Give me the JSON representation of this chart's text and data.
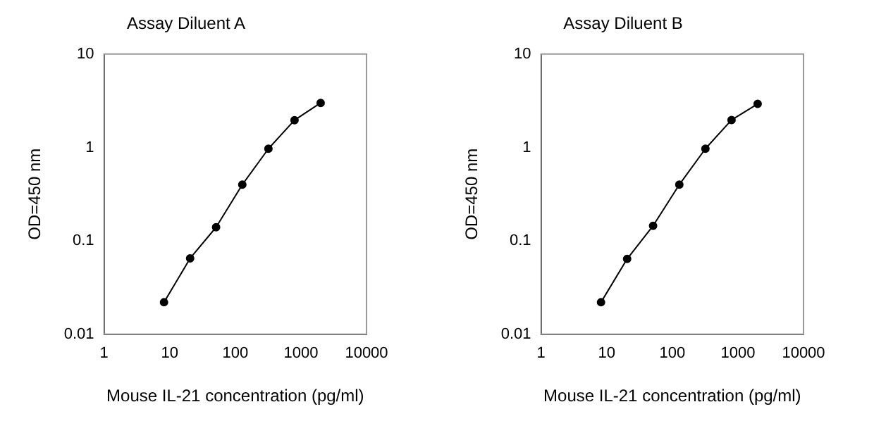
{
  "chart_data": [
    {
      "type": "line",
      "title": "Assay Diluent A",
      "xlabel": "Mouse IL-21 concentration (pg/ml)",
      "ylabel": "OD=450 nm",
      "x": [
        8.2,
        20.5,
        51,
        128,
        320,
        800,
        2000
      ],
      "series": [
        {
          "color": "#000000",
          "values": [
            0.022,
            0.065,
            0.14,
            0.4,
            0.97,
            1.96,
            3.0
          ]
        }
      ],
      "xlim": [
        1,
        10000
      ],
      "xticks": [
        1,
        10,
        100,
        1000,
        10000
      ],
      "ylim": [
        0.01,
        10
      ],
      "yticks": [
        0.01,
        0.1,
        1,
        10
      ],
      "log": "xy",
      "grid": false,
      "legend": false,
      "marker": "circle",
      "line_style": "solid"
    },
    {
      "type": "line",
      "title": "Assay Diluent B",
      "xlabel": "Mouse IL-21 concentration (pg/ml)",
      "ylabel": "OD=450 nm",
      "x": [
        8.2,
        20.5,
        51,
        128,
        320,
        800,
        2000
      ],
      "series": [
        {
          "color": "#000000",
          "values": [
            0.022,
            0.064,
            0.145,
            0.4,
            0.97,
            1.97,
            2.93
          ]
        }
      ],
      "xlim": [
        1,
        10000
      ],
      "xticks": [
        1,
        10,
        100,
        1000,
        10000
      ],
      "ylim": [
        0.01,
        10
      ],
      "yticks": [
        0.01,
        0.1,
        1,
        10
      ],
      "log": "xy",
      "grid": false,
      "legend": false,
      "marker": "circle",
      "line_style": "solid"
    }
  ]
}
